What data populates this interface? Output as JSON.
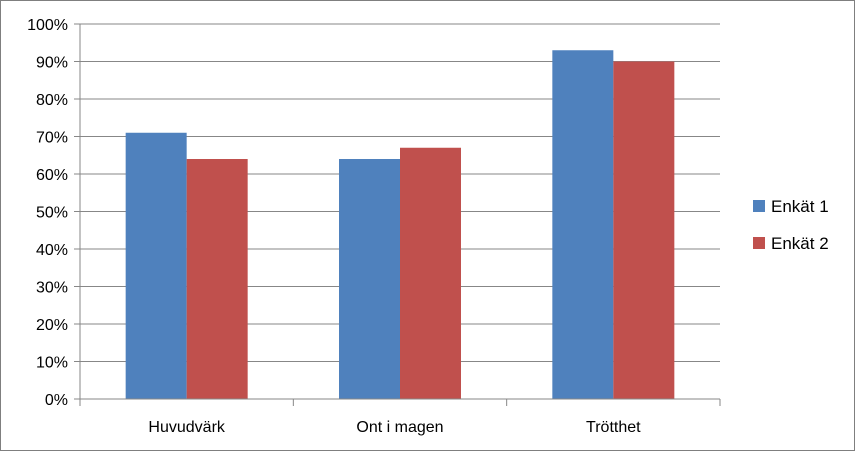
{
  "chart_data": {
    "type": "bar",
    "categories": [
      "Huvudvärk",
      "Ont i magen",
      "Trötthet"
    ],
    "series": [
      {
        "name": "Enkät 1",
        "color": "#4f81bd",
        "values": [
          71,
          64,
          93
        ]
      },
      {
        "name": "Enkät 2",
        "color": "#c0504d",
        "values": [
          64,
          67,
          90
        ]
      }
    ],
    "ylim": [
      0,
      100
    ],
    "yticks": [
      "0%",
      "10%",
      "20%",
      "30%",
      "40%",
      "50%",
      "60%",
      "70%",
      "80%",
      "90%",
      "100%"
    ],
    "ytick_values": [
      0,
      10,
      20,
      30,
      40,
      50,
      60,
      70,
      80,
      90,
      100
    ],
    "grid": true,
    "legend_position": "right",
    "gridline_color": "#878787",
    "axis_color": "#878787"
  }
}
